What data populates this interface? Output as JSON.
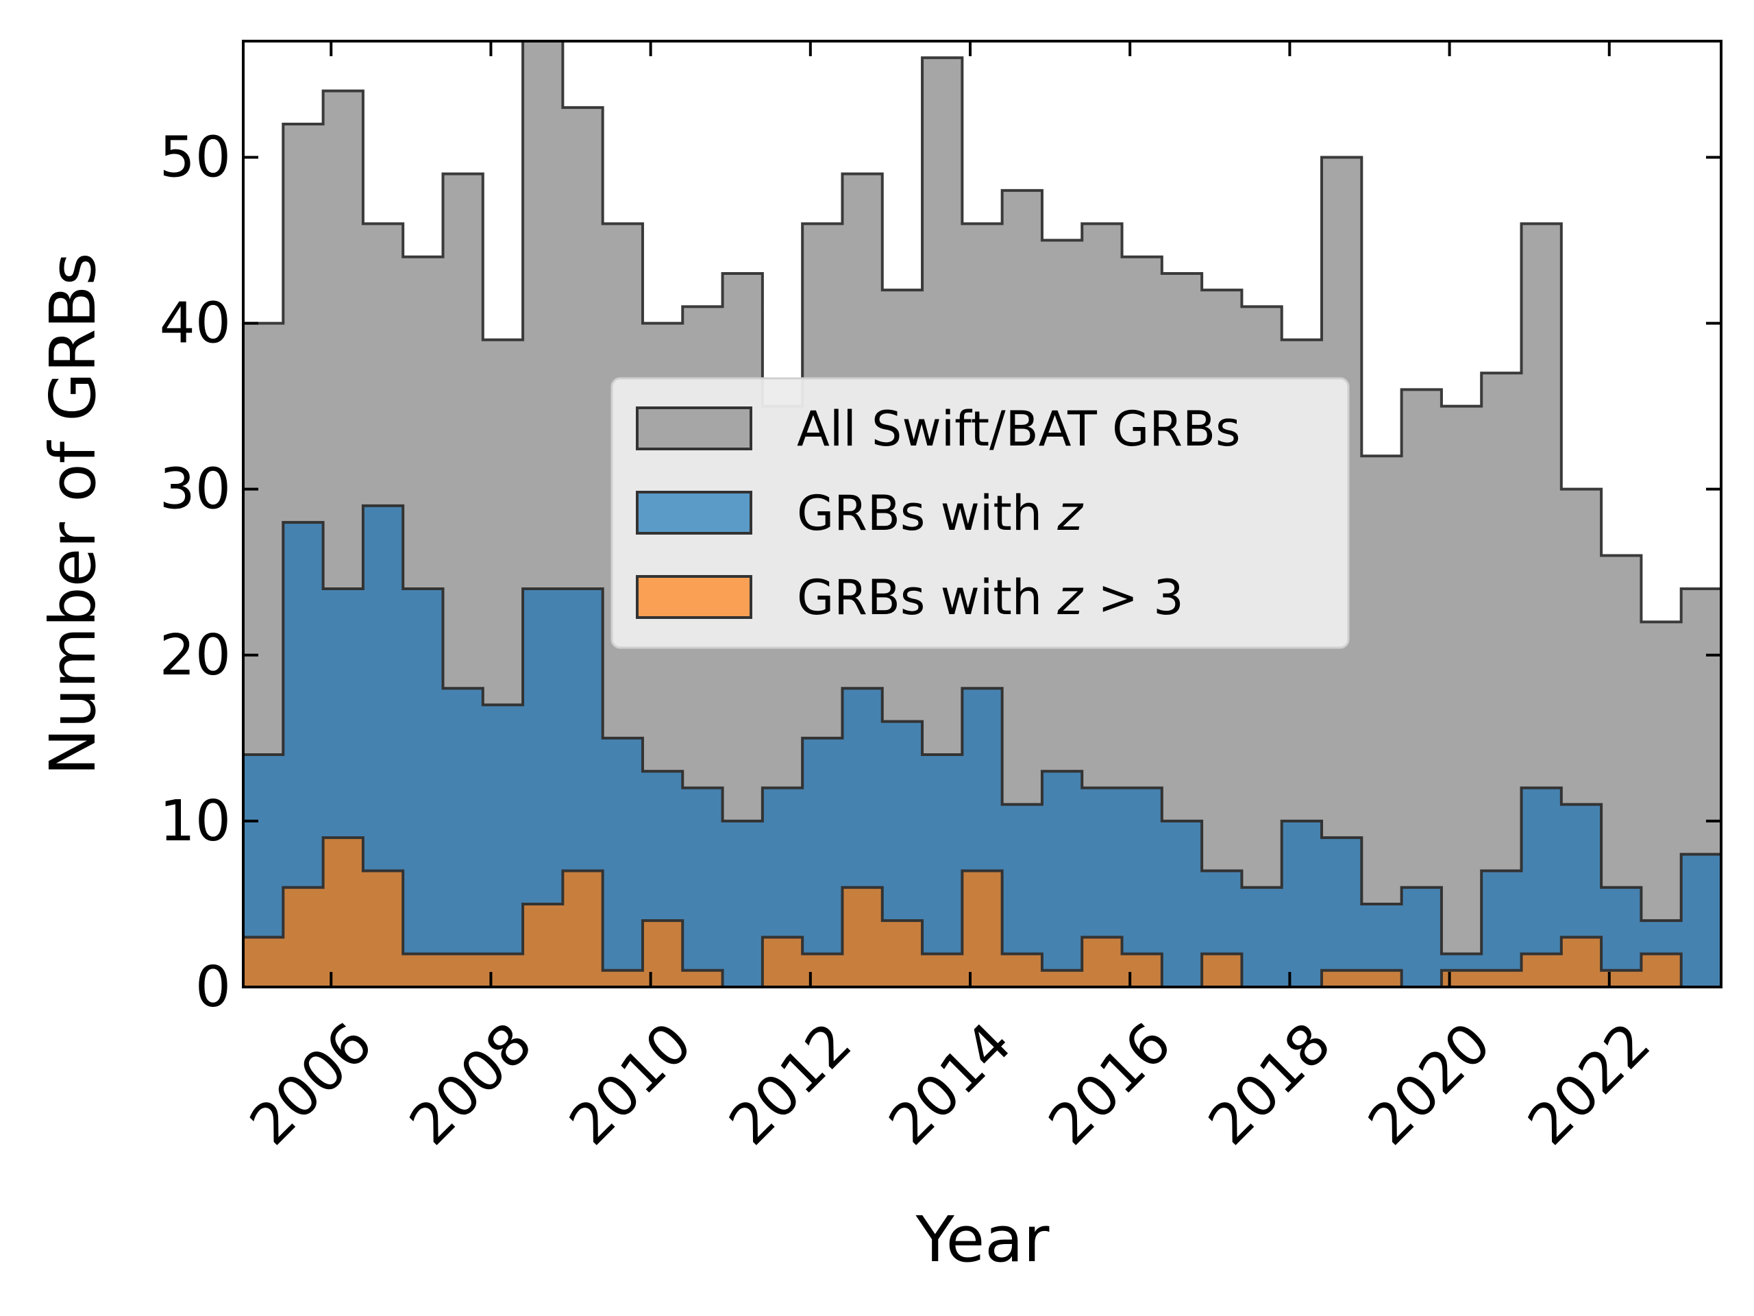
{
  "chart_data": {
    "type": "histogram",
    "title": "",
    "xlabel": "Year",
    "ylabel": "Number of GRBs",
    "xlim": [
      2004.9,
      2023.4
    ],
    "ylim": [
      0,
      57
    ],
    "bin_width": 0.5,
    "bin_start": 2004.9,
    "xticks": [
      2006,
      2008,
      2010,
      2012,
      2014,
      2016,
      2018,
      2020,
      2022
    ],
    "xtick_labels": [
      "2006",
      "2008",
      "2010",
      "2012",
      "2014",
      "2016",
      "2018",
      "2020",
      "2022"
    ],
    "yticks": [
      0,
      10,
      20,
      30,
      40,
      50
    ],
    "ytick_labels": [
      "0",
      "10",
      "20",
      "30",
      "40",
      "50"
    ],
    "grid": false,
    "legend_position": "center",
    "series": [
      {
        "name": "All Swift/BAT GRBs",
        "color": "#a6a6a6",
        "edge_color": "#3a3a3a",
        "values": [
          40,
          52,
          54,
          46,
          44,
          49,
          39,
          57,
          53,
          46,
          40,
          41,
          43,
          35,
          46,
          49,
          42,
          56,
          46,
          48,
          45,
          46,
          44,
          43,
          42,
          41,
          39,
          50,
          32,
          36,
          35,
          37,
          46,
          30,
          26,
          22,
          24
        ]
      },
      {
        "name": "GRBs with z",
        "color": "#4682b0",
        "edge_color": "#333333",
        "values": [
          14,
          28,
          24,
          29,
          24,
          18,
          17,
          24,
          24,
          15,
          13,
          12,
          10,
          12,
          15,
          18,
          16,
          14,
          18,
          11,
          13,
          12,
          12,
          10,
          7,
          6,
          10,
          9,
          5,
          6,
          2,
          7,
          12,
          11,
          6,
          4,
          8
        ]
      },
      {
        "name": "GRBs with z > 3",
        "color": "#c87f3e",
        "edge_color": "#333333",
        "values": [
          3,
          6,
          9,
          7,
          2,
          2,
          2,
          5,
          7,
          1,
          4,
          1,
          0,
          3,
          2,
          6,
          4,
          2,
          7,
          2,
          1,
          3,
          2,
          0,
          2,
          0,
          0,
          1,
          1,
          0,
          1,
          1,
          2,
          3,
          1,
          2,
          0
        ]
      }
    ],
    "legend": [
      {
        "prefix": "All Swift/BAT GRBs",
        "italic": "",
        "suffix": "",
        "swatch_color": "#a6a6a6"
      },
      {
        "prefix": "GRBs with ",
        "italic": "z",
        "suffix": "",
        "swatch_color": "#5b9bc8"
      },
      {
        "prefix": "GRBs with ",
        "italic": "z",
        "suffix": " > 3",
        "swatch_color": "#f9a054"
      }
    ]
  }
}
